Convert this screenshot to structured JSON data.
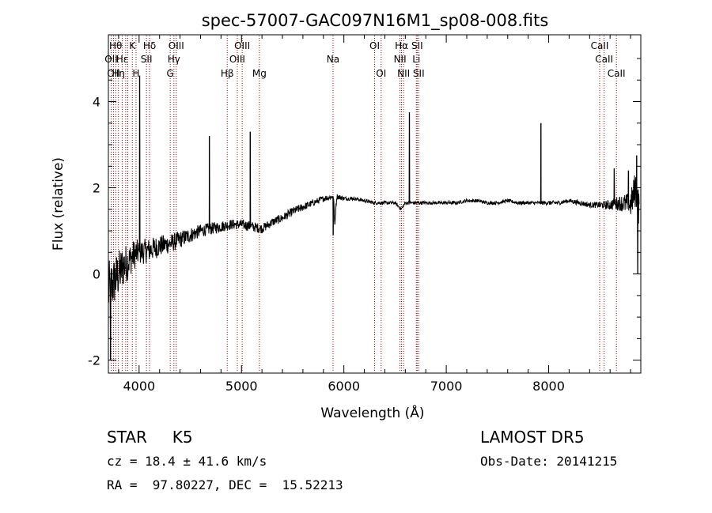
{
  "chart_data": {
    "type": "line",
    "title": "spec-57007-GAC097N16M1_sp08-008.fits",
    "xlabel": "Wavelength (Å)",
    "ylabel": "Flux (relative)",
    "xlim": [
      3700,
      8900
    ],
    "ylim": [
      -2.3,
      5.55
    ],
    "x_ticks": [
      4000,
      5000,
      6000,
      7000,
      8000
    ],
    "y_ticks": [
      -2,
      0,
      2,
      4
    ],
    "grid": false,
    "line_color": "#000000",
    "marker_color": "#aa0000",
    "spectrum_anchors": {
      "x": [
        3700,
        3750,
        3800,
        3850,
        3900,
        3950,
        4000,
        4100,
        4200,
        4300,
        4400,
        4500,
        4600,
        4700,
        4800,
        4900,
        5000,
        5100,
        5200,
        5300,
        5400,
        5500,
        5600,
        5700,
        5800,
        5900,
        5910,
        5930,
        6000,
        6100,
        6200,
        6300,
        6400,
        6500,
        6560,
        6600,
        6700,
        6800,
        6900,
        7000,
        7100,
        7200,
        7300,
        7400,
        7500,
        7600,
        7700,
        7800,
        7900,
        8000,
        8100,
        8200,
        8300,
        8400,
        8500,
        8600,
        8700,
        8800,
        8850,
        8880
      ],
      "y": [
        -0.4,
        -0.2,
        0.0,
        0.2,
        0.3,
        0.45,
        0.5,
        0.55,
        0.65,
        0.7,
        0.8,
        0.9,
        1.0,
        1.05,
        1.1,
        1.15,
        1.15,
        1.1,
        1.05,
        1.2,
        1.3,
        1.45,
        1.55,
        1.65,
        1.75,
        1.8,
        1.1,
        1.8,
        1.75,
        1.75,
        1.7,
        1.65,
        1.65,
        1.65,
        1.5,
        1.65,
        1.65,
        1.65,
        1.65,
        1.65,
        1.65,
        1.7,
        1.7,
        1.65,
        1.65,
        1.7,
        1.65,
        1.65,
        1.65,
        1.65,
        1.65,
        1.7,
        1.65,
        1.6,
        1.6,
        1.6,
        1.65,
        1.6,
        2.0,
        1.5
      ],
      "noise": [
        0.7,
        0.6,
        0.55,
        0.5,
        0.4,
        0.35,
        0.3,
        0.28,
        0.25,
        0.22,
        0.2,
        0.18,
        0.15,
        0.14,
        0.13,
        0.12,
        0.12,
        0.12,
        0.11,
        0.1,
        0.1,
        0.1,
        0.09,
        0.08,
        0.07,
        0.07,
        0.07,
        0.07,
        0.05,
        0.04,
        0.04,
        0.04,
        0.04,
        0.04,
        0.04,
        0.04,
        0.04,
        0.04,
        0.04,
        0.04,
        0.04,
        0.04,
        0.04,
        0.04,
        0.04,
        0.04,
        0.04,
        0.04,
        0.04,
        0.05,
        0.05,
        0.05,
        0.06,
        0.06,
        0.08,
        0.12,
        0.18,
        0.3,
        0.45,
        0.5
      ]
    },
    "emission_spikes": [
      {
        "x": 4005,
        "y": 4.6
      },
      {
        "x": 4686,
        "y": 3.2
      },
      {
        "x": 5085,
        "y": 3.3
      },
      {
        "x": 6640,
        "y": 3.75
      },
      {
        "x": 7925,
        "y": 3.5
      },
      {
        "x": 8640,
        "y": 2.45
      },
      {
        "x": 8780,
        "y": 2.4
      },
      {
        "x": 8860,
        "y": 2.75
      }
    ],
    "absorption_dips": [
      {
        "x": 3720,
        "y": -2.0
      },
      {
        "x": 5895,
        "y": 0.9
      },
      {
        "x": 8870,
        "y": 0.0
      }
    ],
    "line_markers": [
      {
        "x": 3727,
        "labels": [
          {
            "text": "OII",
            "row": 2
          }
        ]
      },
      {
        "x": 3750,
        "labels": [
          {
            "text": "OII",
            "row": 3
          }
        ]
      },
      {
        "x": 3771,
        "labels": [
          {
            "text": "Hθ",
            "row": 1
          }
        ]
      },
      {
        "x": 3798,
        "labels": [
          {
            "text": "Hη",
            "row": 3
          }
        ]
      },
      {
        "x": 3835,
        "labels": [
          {
            "text": "Hε",
            "row": 2
          }
        ]
      },
      {
        "x": 3869,
        "labels": []
      },
      {
        "x": 3889,
        "labels": []
      },
      {
        "x": 3934,
        "labels": [
          {
            "text": "K",
            "row": 1
          }
        ]
      },
      {
        "x": 3970,
        "labels": [
          {
            "text": "H",
            "row": 3
          }
        ]
      },
      {
        "x": 4072,
        "labels": [
          {
            "text": "SII",
            "row": 2
          }
        ]
      },
      {
        "x": 4102,
        "labels": [
          {
            "text": "Hδ",
            "row": 1
          }
        ]
      },
      {
        "x": 4304,
        "labels": [
          {
            "text": "G",
            "row": 3
          }
        ]
      },
      {
        "x": 4340,
        "labels": [
          {
            "text": "Hγ",
            "row": 2
          }
        ]
      },
      {
        "x": 4363,
        "labels": [
          {
            "text": "OIII",
            "row": 1
          }
        ]
      },
      {
        "x": 4861,
        "labels": [
          {
            "text": "Hβ",
            "row": 3
          }
        ]
      },
      {
        "x": 4959,
        "labels": [
          {
            "text": "OIII",
            "row": 2
          }
        ]
      },
      {
        "x": 5007,
        "labels": [
          {
            "text": "OIII",
            "row": 1
          }
        ]
      },
      {
        "x": 5175,
        "labels": [
          {
            "text": "Mg",
            "row": 3
          }
        ]
      },
      {
        "x": 5894,
        "labels": [
          {
            "text": "Na",
            "row": 2
          }
        ]
      },
      {
        "x": 6300,
        "labels": [
          {
            "text": "OI",
            "row": 1
          }
        ]
      },
      {
        "x": 6364,
        "labels": [
          {
            "text": "OI",
            "row": 3
          }
        ]
      },
      {
        "x": 6548,
        "labels": [
          {
            "text": "NII",
            "row": 2
          }
        ]
      },
      {
        "x": 6563,
        "labels": [
          {
            "text": "Hα",
            "row": 1
          }
        ]
      },
      {
        "x": 6583,
        "labels": [
          {
            "text": "NII",
            "row": 3
          }
        ]
      },
      {
        "x": 6708,
        "labels": [
          {
            "text": "Li",
            "row": 2
          }
        ]
      },
      {
        "x": 6716,
        "labels": [
          {
            "text": "SII",
            "row": 1
          }
        ]
      },
      {
        "x": 6731,
        "labels": [
          {
            "text": "SII",
            "row": 3
          }
        ]
      },
      {
        "x": 8498,
        "labels": [
          {
            "text": "CaII",
            "row": 1
          }
        ]
      },
      {
        "x": 8542,
        "labels": [
          {
            "text": "CaII",
            "row": 2
          }
        ]
      },
      {
        "x": 8662,
        "labels": [
          {
            "text": "CaII",
            "row": 3
          }
        ]
      }
    ]
  },
  "info": {
    "object": "STAR     K5",
    "survey": "LAMOST DR5",
    "redshift": "cz = 18.4 ± 41.6 km/s",
    "obs_date": "Obs-Date: 20141215",
    "coords": "RA =  97.80227, DEC =  15.52213"
  }
}
